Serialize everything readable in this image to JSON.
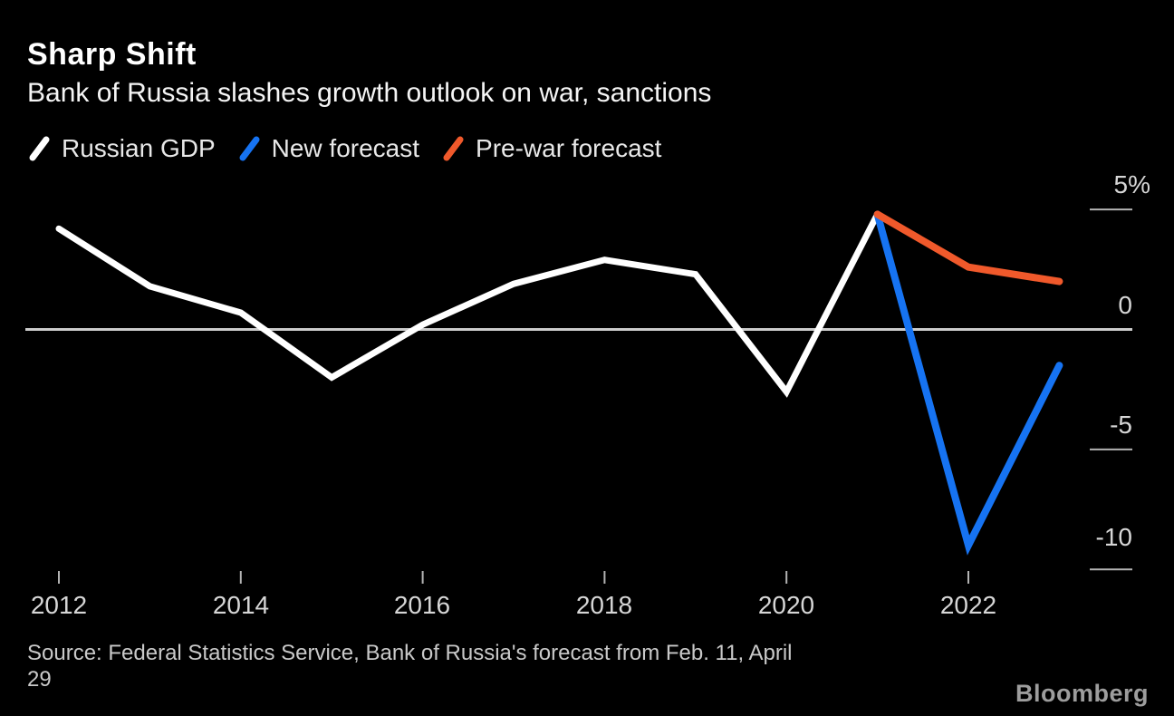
{
  "page": {
    "background": "#000000"
  },
  "header": {
    "title": "Sharp Shift",
    "subtitle": "Bank of Russia slashes growth outlook on war, sanctions"
  },
  "legend": {
    "items": [
      {
        "label": "Russian GDP",
        "color": "#ffffff"
      },
      {
        "label": "New forecast",
        "color": "#1673f2"
      },
      {
        "label": "Pre-war forecast",
        "color": "#f0592b"
      }
    ]
  },
  "chart_data": {
    "type": "line",
    "title": "Sharp Shift",
    "subtitle": "Bank of Russia slashes growth outlook on war, sanctions",
    "unit": "%",
    "xlim": [
      2012,
      2023
    ],
    "ylim": [
      -10.5,
      5
    ],
    "grid": false,
    "zero_line": true,
    "legend_position": "top-left",
    "x_ticks": [
      "2012",
      "2014",
      "2016",
      "2018",
      "2020",
      "2022"
    ],
    "y_ticks": [
      {
        "value": 5,
        "label": "5%"
      },
      {
        "value": 0,
        "label": "0"
      },
      {
        "value": -5,
        "label": "-5"
      },
      {
        "value": -10,
        "label": "-10"
      }
    ],
    "series": [
      {
        "name": "Russian GDP",
        "color": "#ffffff",
        "stroke_width": 7,
        "x": [
          2012,
          2013,
          2014,
          2015,
          2016,
          2017,
          2018,
          2019,
          2020,
          2021
        ],
        "values": [
          4.2,
          1.8,
          0.7,
          -2.0,
          0.2,
          1.9,
          2.9,
          2.3,
          -2.6,
          4.8
        ]
      },
      {
        "name": "New forecast",
        "color": "#1673f2",
        "stroke_width": 8,
        "x": [
          2021,
          2022,
          2023
        ],
        "values": [
          4.8,
          -9.0,
          -1.5
        ]
      },
      {
        "name": "Pre-war forecast",
        "color": "#f0592b",
        "stroke_width": 8,
        "x": [
          2021,
          2022,
          2023
        ],
        "values": [
          4.8,
          2.6,
          2.0
        ]
      }
    ]
  },
  "source": {
    "line1": "Source: Federal Statistics Service, Bank of Russia's forecast from Feb. 11, April",
    "line2": "29"
  },
  "footer": {
    "brand": "Bloomberg"
  }
}
